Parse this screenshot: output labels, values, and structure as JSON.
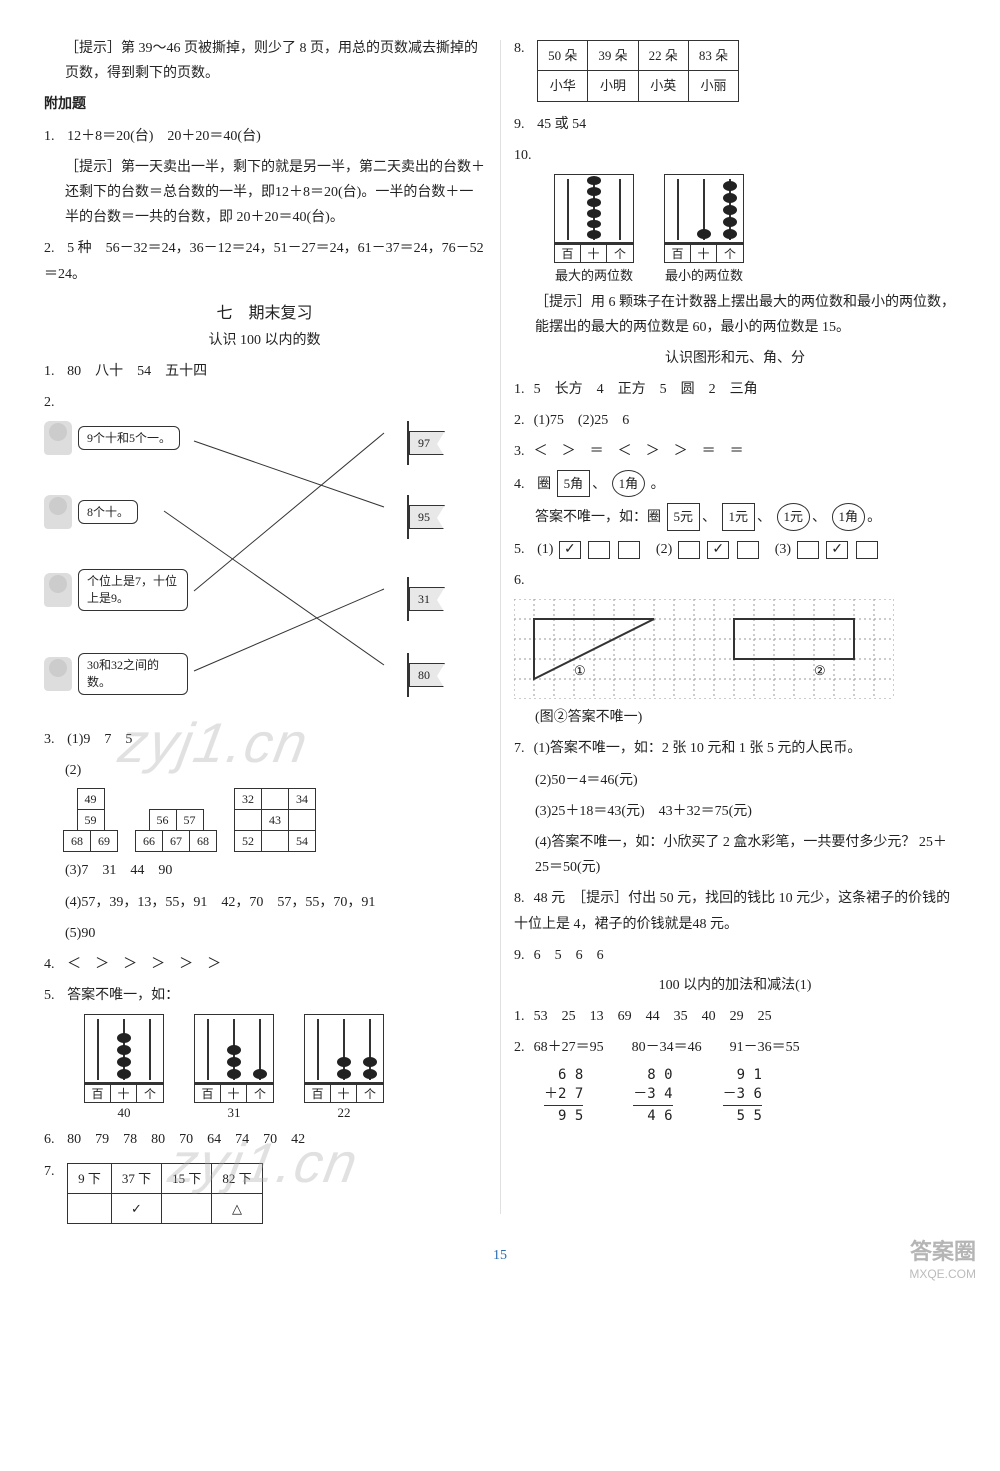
{
  "page_number": "15",
  "watermarks": [
    "zyj1.cn",
    "zyj1.cn"
  ],
  "footer": {
    "big": "答案圈",
    "url": "MXQE.COM"
  },
  "left": {
    "tip1": "［提示］第 39～46 页被撕掉，则少了 8 页，用总的页数减去撕掉的页数，得到剩下的页数。",
    "extra_title": "附加题",
    "a1_line1": "12＋8＝20(台)　20＋20＝40(台)",
    "a1_tip": "［提示］第一天卖出一半，剩下的就是另一半，第二天卖出的台数＋还剩下的台数＝总台数的一半，即12＋8＝20(台)。一半的台数＋一半的台数＝一共的台数，即 20＋20＝40(台)。",
    "a2": "5 种　56－32＝24，36－12＝24，51－27＝24，61－37＝24，76－52＝24。",
    "section7": "七　期末复习",
    "sub_a": "认识 100 以内的数",
    "q1": "80　八十　54　五十四",
    "q2": {
      "kids": [
        {
          "text": "9个十和5个一。"
        },
        {
          "text": "8个十。"
        },
        {
          "text": "个位上是7，十位上是9。"
        },
        {
          "text": "30和32之间的数。"
        }
      ],
      "flags": [
        "97",
        "95",
        "31",
        "80"
      ]
    },
    "q3_1": "(1)9　7　5",
    "q3_2_label": "(2)",
    "q3_pyr": [
      {
        "rows": [
          [
            "49"
          ],
          [
            "59"
          ],
          [
            "68",
            "69"
          ]
        ]
      },
      {
        "rows": [
          [
            "56",
            "57"
          ],
          [
            "66",
            "67",
            "68"
          ]
        ]
      },
      {
        "rows": [
          [
            "32",
            "",
            "34"
          ],
          [
            "",
            "43",
            ""
          ],
          [
            "52",
            "",
            "54"
          ]
        ]
      }
    ],
    "q3_3": "(3)7　31　44　90",
    "q3_4": "(4)57，39，13，55，91　42，70　57，55，70，91",
    "q3_5": "(5)90",
    "q4": "＜　＞　＞　＞　＞　＞",
    "q5_label": "答案不唯一，如：",
    "q5_abaci": [
      {
        "beads": [
          0,
          4,
          0
        ],
        "caption": "40"
      },
      {
        "beads": [
          0,
          3,
          1
        ],
        "caption": "31"
      },
      {
        "beads": [
          0,
          2,
          2
        ],
        "caption": "22"
      }
    ],
    "q6": "80　79　78　80　70　64　74　70　42",
    "q7_table": {
      "row1": [
        "9 下",
        "37 下",
        "15 下",
        "82 下"
      ],
      "row2": [
        "",
        "✓",
        "",
        "△"
      ]
    }
  },
  "right": {
    "q8_table": {
      "row1": [
        "50 朵",
        "39 朵",
        "22 朵",
        "83 朵"
      ],
      "row2": [
        "小华",
        "小明",
        "小英",
        "小丽"
      ]
    },
    "q9": "45 或 54",
    "q10_abaci": [
      {
        "beads": [
          0,
          6,
          0
        ],
        "caption": "最大的两位数"
      },
      {
        "beads": [
          0,
          1,
          5
        ],
        "caption": "最小的两位数"
      }
    ],
    "q10_tip": "［提示］用 6 颗珠子在计数器上摆出最大的两位数和最小的两位数，能摆出的最大的两位数是 60，最小的两位数是 15。",
    "sub_b": "认识图形和元、角、分",
    "b_q1": "5　长方　4　正方　5　圆　2　三角",
    "b_q2": "(1)75　(2)25　6",
    "b_q3": "＜　＞　＝　＜　＞　＞　＝　＝",
    "b_q4_pre": "圈",
    "b_q4_box1": "5角",
    "b_q4_circ1": "1角",
    "b_q4_post": "。",
    "b_q4_ans_pre": "答案不唯一，如：圈",
    "b_q4_items": [
      {
        "type": "box",
        "v": "5元"
      },
      {
        "type": "box",
        "v": "1元"
      },
      {
        "type": "circle",
        "v": "1元"
      },
      {
        "type": "circle",
        "v": "1角"
      }
    ],
    "b_q5": {
      "g1": [
        "✓",
        "",
        ""
      ],
      "g2": [
        "",
        "✓",
        ""
      ],
      "g3": [
        "",
        "✓",
        ""
      ],
      "labels": [
        "(1)",
        "(2)",
        "(3)"
      ]
    },
    "b_q6_caption": "(图②答案不唯一)",
    "b_q7_1": "(1)答案不唯一，如：2 张 10 元和 1 张 5 元的人民币。",
    "b_q7_2": "(2)50－4＝46(元)",
    "b_q7_3": "(3)25＋18＝43(元)　43＋32＝75(元)",
    "b_q7_4": "(4)答案不唯一，如：小欣买了 2 盒水彩笔，一共要付多少元？ 25＋25＝50(元)",
    "b_q8": "48 元　［提示］付出 50 元，找回的钱比 10 元少，这条裙子的价钱的十位上是 4，裙子的价钱就是48 元。",
    "b_q9": "6　5　6　6",
    "sub_c": "100 以内的加法和减法(1)",
    "c_q1": "53　25　13　69　44　35　40　29　25",
    "c_q2_line": "68＋27＝95　　80－34＝46　　91－36＝55",
    "c_q2_vert": [
      {
        "a": "6 8",
        "b": "＋2 7",
        "r": "9 5"
      },
      {
        "a": "8 0",
        "b": "－3 4",
        "r": "4 6"
      },
      {
        "a": "9 1",
        "b": "－3 6",
        "r": "5 5"
      }
    ]
  },
  "labels": {
    "bai": "百",
    "shi": "十",
    "ge": "个"
  },
  "circled": {
    "one": "①",
    "two": "②"
  }
}
